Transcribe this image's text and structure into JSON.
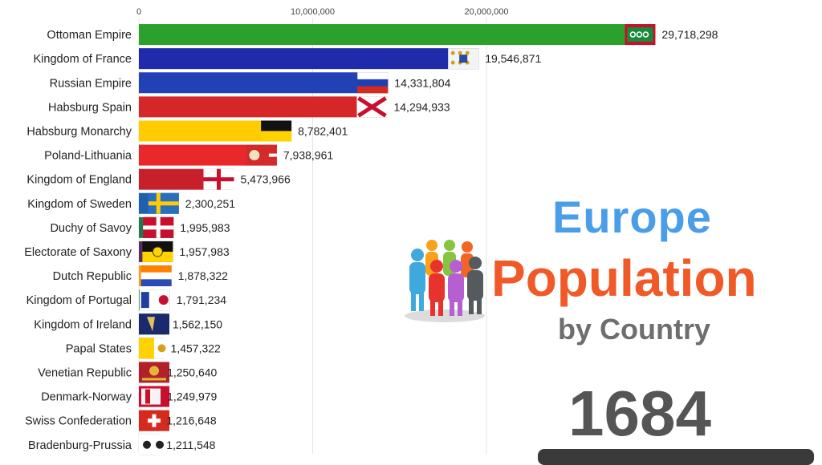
{
  "chart_data": {
    "type": "bar",
    "orientation": "horizontal",
    "title": "Europe Population",
    "subtitle": "by Country",
    "year": "1684",
    "xlim": [
      0,
      30000000
    ],
    "ticks": [
      {
        "value": 0,
        "label": "0"
      },
      {
        "value": 10000000,
        "label": "10,000,000"
      },
      {
        "value": 20000000,
        "label": "20,000,000"
      }
    ],
    "grid": true,
    "categories": [
      "Ottoman Empire",
      "Kingdom of France",
      "Russian Empire",
      "Habsburg Spain",
      "Habsburg Monarchy",
      "Poland-Lithuania",
      "Kingdom of England",
      "Kingdom of Sweden",
      "Duchy of Savoy",
      "Electorate of Saxony",
      "Dutch Republic",
      "Kingdom of Portugal",
      "Kingdom of Ireland",
      "Papal States",
      "Venetian Republic",
      "Denmark-Norway",
      "Swiss Confederation",
      "Bradenburg-Prussia"
    ],
    "values": [
      29718298,
      19546871,
      14331804,
      14294933,
      8782401,
      7938961,
      5473966,
      2300251,
      1995983,
      1957983,
      1878322,
      1791234,
      1562150,
      1457322,
      1250640,
      1249979,
      1216648,
      1211548
    ],
    "value_labels": [
      "29,718,298",
      "19,546,871",
      "14,331,804",
      "14,294,933",
      "8,782,401",
      "7,938,961",
      "5,473,966",
      "2,300,251",
      "1,995,983",
      "1,957,983",
      "1,878,322",
      "1,791,234",
      "1,562,150",
      "1,457,322",
      "1,250,640",
      "1,249,979",
      "1,216,648",
      "1,211,548"
    ],
    "colors": [
      "#2ca02c",
      "#1f2bab",
      "#2141b5",
      "#d62728",
      "#ffcc00",
      "#e8282a",
      "#c8202a",
      "#1f5fb0",
      "#1e7a4d",
      "#5a2d5e",
      "#ff9a1e",
      "#1c8a35",
      "#1a7f73",
      "#8e3ca8",
      "#3d8a32",
      "#c8102e",
      "#3f6fd0",
      "#9b45c0"
    ],
    "flag_icons": [
      "ottoman-flag-icon",
      "france-flag-icon",
      "russia-flag-icon",
      "spain-flag-icon",
      "habsburg-flag-icon",
      "poland-flag-icon",
      "england-flag-icon",
      "sweden-flag-icon",
      "savoy-flag-icon",
      "saxony-flag-icon",
      "dutch-flag-icon",
      "portugal-flag-icon",
      "ireland-flag-icon",
      "papal-flag-icon",
      "venice-flag-icon",
      "denmark-flag-icon",
      "swiss-flag-icon",
      "prussia-flag-icon"
    ]
  },
  "title_block": {
    "line1": "Europe",
    "line2": "Population",
    "line3": "by Country",
    "year": "1684"
  }
}
